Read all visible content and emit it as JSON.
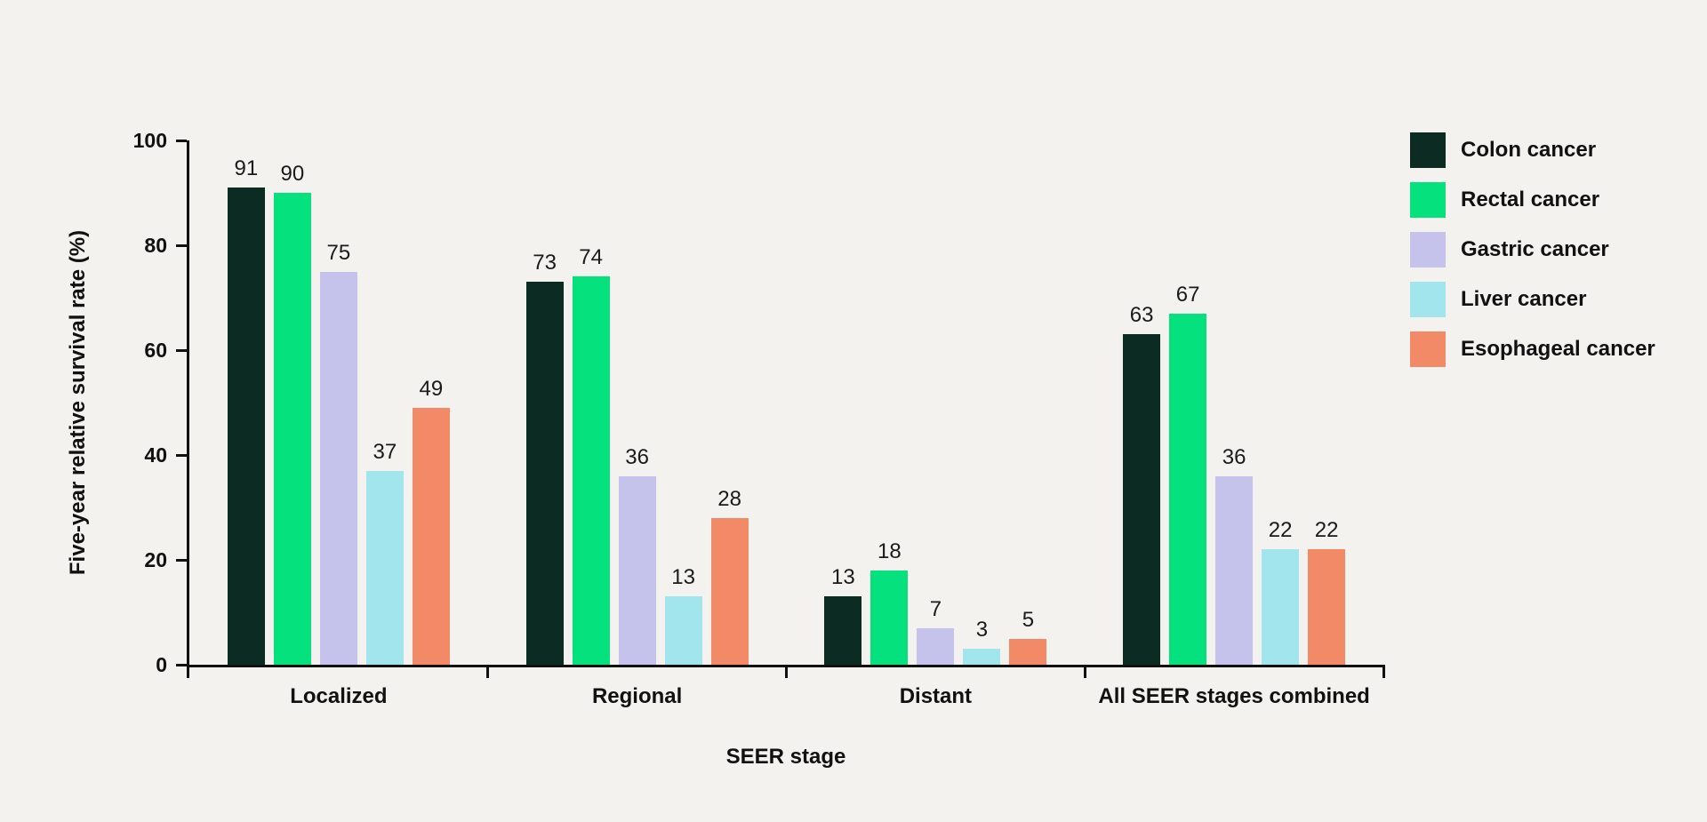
{
  "colors": {
    "background": "#f4f2ef",
    "axis": "#111111",
    "text": "#111111"
  },
  "chart_data": {
    "type": "bar",
    "title": "",
    "xlabel": "SEER stage",
    "ylabel": "Five-year relative survival rate (%)",
    "categories": [
      "Localized",
      "Regional",
      "Distant",
      "All SEER stages combined"
    ],
    "series": [
      {
        "name": "Colon cancer",
        "color": "#0c2b23",
        "values": [
          91,
          73,
          13,
          63
        ]
      },
      {
        "name": "Rectal cancer",
        "color": "#05e17c",
        "values": [
          90,
          74,
          18,
          67
        ]
      },
      {
        "name": "Gastric cancer",
        "color": "#c5c2ec",
        "values": [
          75,
          36,
          7,
          36
        ]
      },
      {
        "name": "Liver cancer",
        "color": "#a2e5ec",
        "values": [
          37,
          13,
          3,
          22
        ]
      },
      {
        "name": "Esophageal cancer",
        "color": "#f28a68",
        "values": [
          49,
          28,
          5,
          22
        ]
      }
    ],
    "ylim": [
      0,
      100
    ],
    "yticks": [
      0,
      20,
      40,
      60,
      80,
      100
    ],
    "grid": false,
    "legend_position": "right",
    "value_labels": true
  }
}
